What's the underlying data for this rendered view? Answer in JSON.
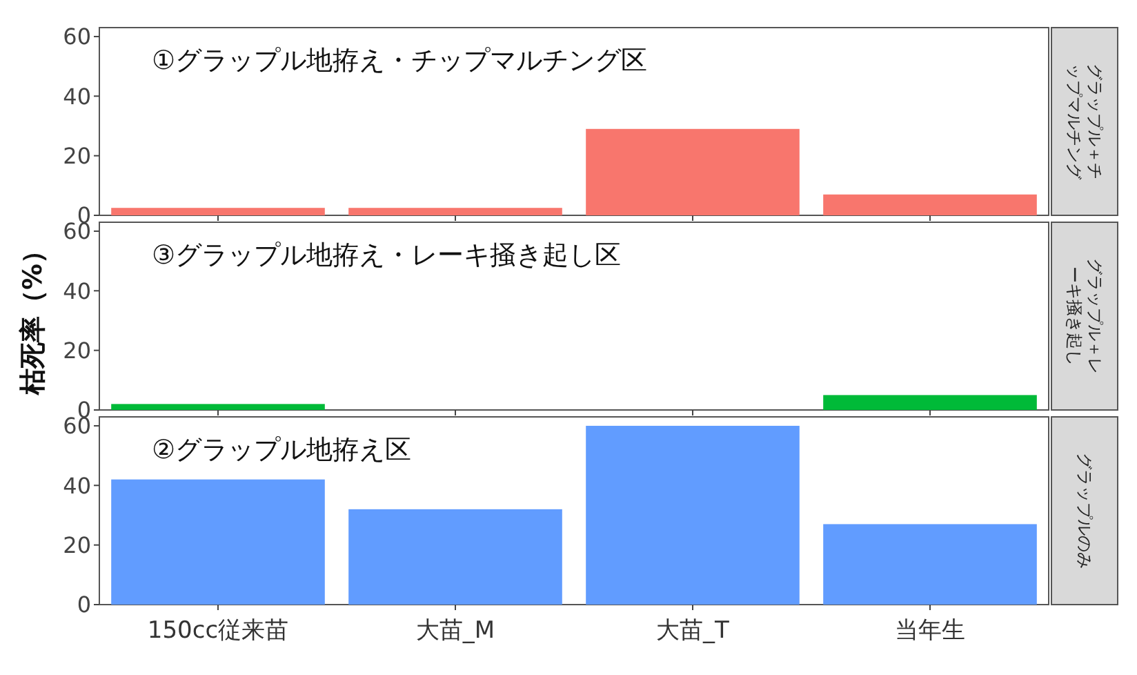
{
  "chart_data": [
    {
      "type": "bar",
      "title": "①グラップル地拵え・チップマルチング区",
      "annotations": [
        "グラップル＋チップマルチング"
      ],
      "values": [
        2.5,
        2.5,
        29,
        7
      ],
      "color": "#f8766d",
      "ylim": [
        0,
        63
      ],
      "yticks": [
        0,
        20,
        40,
        60
      ],
      "tick_labels": "y",
      "grid": false
    },
    {
      "type": "bar",
      "title": "③グラップル地拵え・レーキ掻き起し区",
      "annotations": [
        "グラップル＋レーキ掻き起し"
      ],
      "ylabel": "枯死率（%）",
      "values": [
        2,
        0,
        0,
        5
      ],
      "color": "#00ba38",
      "ylim": [
        0,
        63
      ],
      "yticks": [
        0,
        20,
        40,
        60
      ],
      "tick_labels": "y",
      "grid": false
    },
    {
      "type": "bar",
      "title": "②グラップル地拵え区",
      "annotations": [
        "グラップルのみ"
      ],
      "categories": [
        "150cc従来苗",
        "大苗_M",
        "大苗_T",
        "当年生"
      ],
      "values": [
        42,
        32,
        60,
        27
      ],
      "color": "#619cff",
      "ylim": [
        0,
        63
      ],
      "yticks": [
        0,
        20,
        40,
        60
      ],
      "grid": false
    }
  ]
}
